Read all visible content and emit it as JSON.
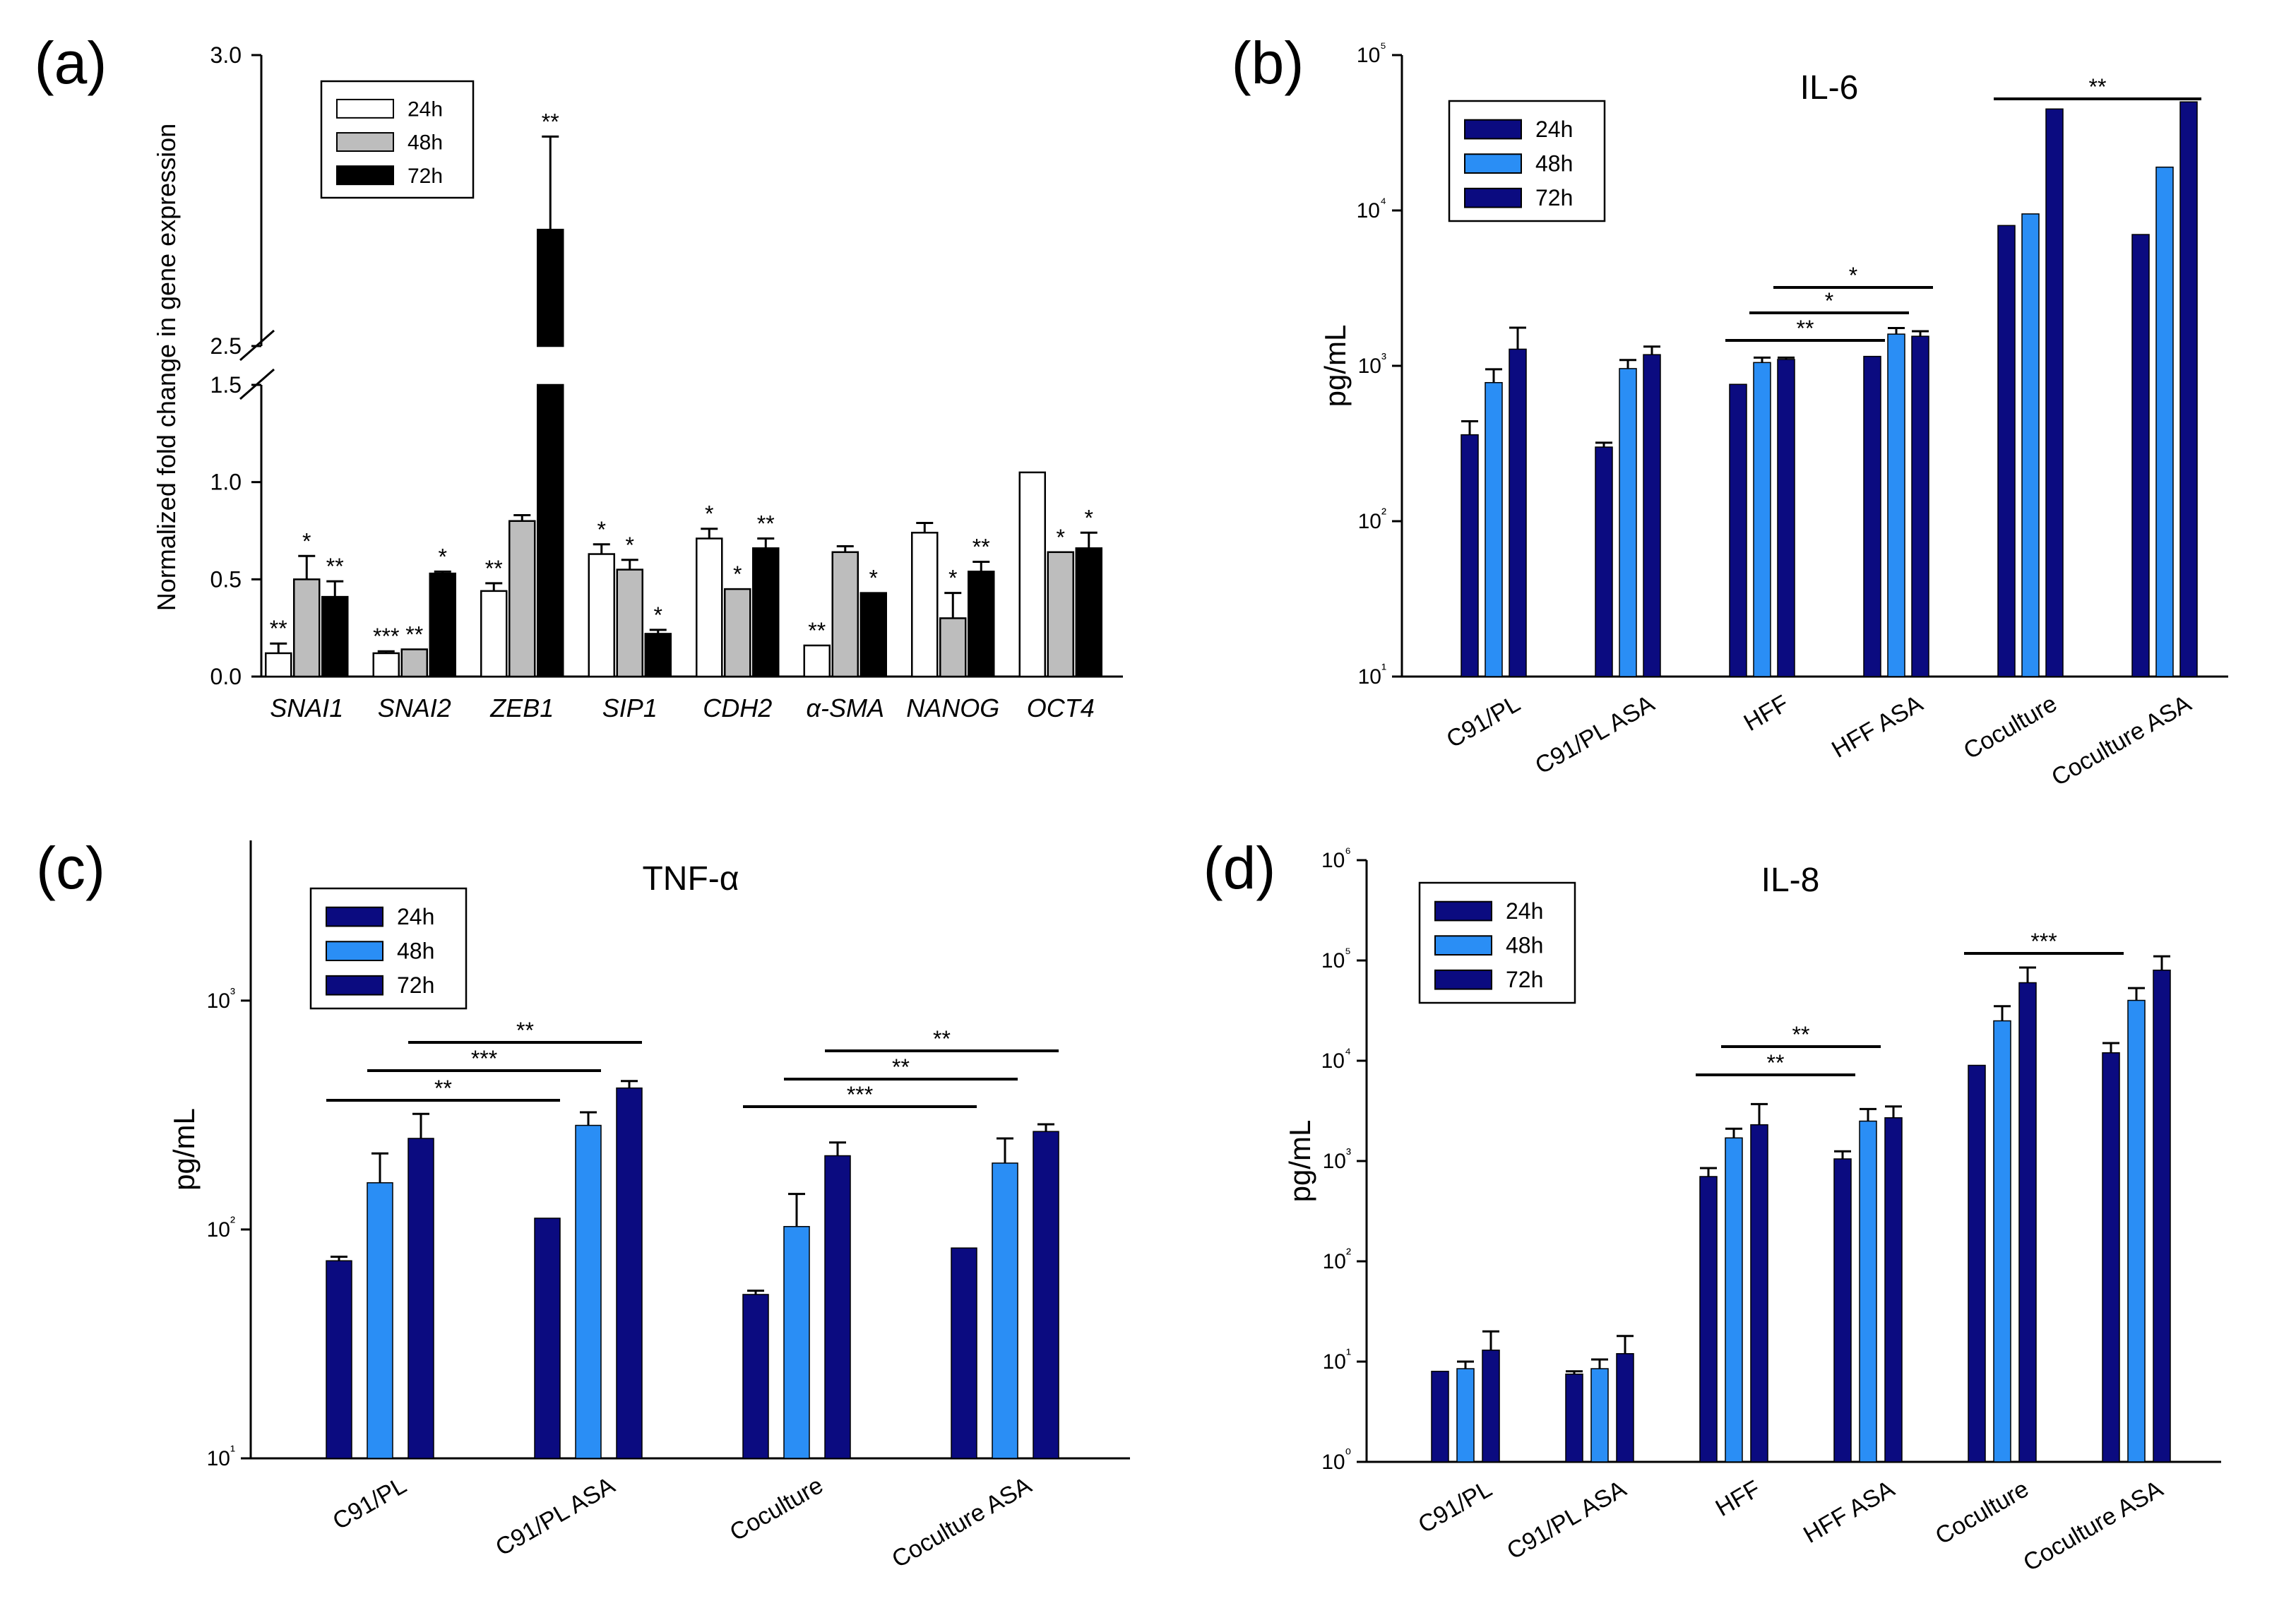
{
  "figure": {
    "colors": {
      "white24": "#ffffff",
      "gray48": "#bdbdbd",
      "black72": "#000000",
      "dark": "#0b0b80",
      "light": "#2a8ef5",
      "axis": "#000000"
    }
  },
  "chart_data": [
    {
      "panel_label": "(a)",
      "type": "bar",
      "title": "",
      "ylabel": "Normalized fold change in gene expression",
      "xlabel": "",
      "y_lower_range": [
        0,
        1.5
      ],
      "y_upper_range": [
        2.5,
        3.0
      ],
      "y_ticks": [
        "0.0",
        "0.5",
        "1.0",
        "1.5",
        "2.5",
        "3.0"
      ],
      "categories": [
        "SNAI1",
        "SNAI2",
        "ZEB1",
        "SIP1",
        "CDH2",
        "α-SMA",
        "NANOG",
        "OCT4"
      ],
      "series": [
        {
          "name": "24h",
          "values": [
            0.12,
            0.12,
            0.44,
            0.63,
            0.71,
            0.16,
            0.74,
            1.05
          ],
          "errors": [
            0.05,
            0.01,
            0.04,
            0.05,
            0.05,
            0.0,
            0.05,
            0.0
          ],
          "stars": [
            "**",
            "***",
            "**",
            "*",
            "*",
            "**",
            "",
            ""
          ]
        },
        {
          "name": "48h",
          "values": [
            0.5,
            0.14,
            0.8,
            0.55,
            0.45,
            0.64,
            0.3,
            0.64
          ],
          "errors": [
            0.12,
            0.0,
            0.03,
            0.05,
            0.0,
            0.03,
            0.13,
            0.0
          ],
          "stars": [
            "*",
            "**",
            "",
            "*",
            "*",
            "",
            "*",
            "*"
          ]
        },
        {
          "name": "72h",
          "values": [
            0.41,
            0.53,
            2.7,
            0.22,
            0.66,
            0.43,
            0.54,
            0.66
          ],
          "errors": [
            0.08,
            0.01,
            0.16,
            0.02,
            0.05,
            0.0,
            0.05,
            0.08
          ],
          "stars": [
            "**",
            "*",
            "**",
            "*",
            "**",
            "*",
            "**",
            "*"
          ]
        }
      ],
      "legend": [
        "24h",
        "48h",
        "72h"
      ]
    },
    {
      "panel_label": "(b)",
      "type": "bar",
      "title": "IL-6",
      "ylabel": "pg/mL",
      "yscale": "log",
      "ylim_exp": [
        1,
        5
      ],
      "y_ticks": [
        "10¹",
        "10²",
        "10³",
        "10⁴",
        "10⁵"
      ],
      "categories": [
        "C91/PL",
        "C91/PL ASA",
        "HFF",
        "HFF ASA",
        "Coculture",
        "Coculture ASA"
      ],
      "series": [
        {
          "name": "24h",
          "values": [
            360,
            300,
            760,
            1150,
            8000,
            7000
          ],
          "errors": [
            80,
            20,
            0,
            0,
            0,
            0
          ]
        },
        {
          "name": "48h",
          "values": [
            780,
            960,
            1050,
            1600,
            9500,
            19000
          ],
          "errors": [
            170,
            130,
            80,
            150,
            0,
            0
          ]
        },
        {
          "name": "72h",
          "values": [
            1280,
            1180,
            1100,
            1550,
            45000,
            50000
          ],
          "errors": [
            480,
            150,
            30,
            120,
            0,
            0
          ]
        }
      ],
      "significance": [
        {
          "label": "**",
          "from": [
            2,
            0
          ],
          "to": [
            3,
            0
          ]
        },
        {
          "label": "*",
          "from": [
            2,
            1
          ],
          "to": [
            3,
            1
          ]
        },
        {
          "label": "*",
          "from": [
            2,
            2
          ],
          "to": [
            3,
            2
          ]
        },
        {
          "label": "**",
          "from": [
            4,
            0
          ],
          "to": [
            5,
            2
          ]
        }
      ],
      "legend": [
        "24h",
        "48h",
        "72h"
      ]
    },
    {
      "panel_label": "(c)",
      "type": "bar",
      "title": "TNF-α",
      "ylabel": "pg/mL",
      "yscale": "log",
      "ylim_exp": [
        1,
        3.7
      ],
      "y_ticks": [
        "10¹",
        "10²",
        "10³"
      ],
      "categories": [
        "C91/PL",
        "C91/PL ASA",
        "Coculture",
        "Coculture ASA"
      ],
      "series": [
        {
          "name": "24h",
          "values": [
            73,
            112,
            52,
            83
          ],
          "errors": [
            3,
            0,
            2,
            0
          ]
        },
        {
          "name": "48h",
          "values": [
            160,
            285,
            103,
            195
          ],
          "errors": [
            55,
            40,
            40,
            55
          ]
        },
        {
          "name": "72h",
          "values": [
            250,
            415,
            210,
            268
          ],
          "errors": [
            70,
            30,
            30,
            20
          ]
        }
      ],
      "significance": [
        {
          "label": "**",
          "from": [
            0,
            0
          ],
          "to": [
            1,
            0
          ]
        },
        {
          "label": "***",
          "from": [
            0,
            1
          ],
          "to": [
            1,
            1
          ]
        },
        {
          "label": "**",
          "from": [
            0,
            2
          ],
          "to": [
            1,
            2
          ]
        },
        {
          "label": "***",
          "from": [
            2,
            0
          ],
          "to": [
            3,
            0
          ]
        },
        {
          "label": "**",
          "from": [
            2,
            1
          ],
          "to": [
            3,
            1
          ]
        },
        {
          "label": "**",
          "from": [
            2,
            2
          ],
          "to": [
            3,
            2
          ]
        }
      ],
      "legend": [
        "24h",
        "48h",
        "72h"
      ]
    },
    {
      "panel_label": "(d)",
      "type": "bar",
      "title": "IL-8",
      "ylabel": "pg/mL",
      "yscale": "log",
      "ylim_exp": [
        0,
        6
      ],
      "y_ticks": [
        "10⁰",
        "10¹",
        "10²",
        "10³",
        "10⁴",
        "10⁵",
        "10⁶"
      ],
      "categories": [
        "C91/PL",
        "C91/PL ASA",
        "HFF",
        "HFF ASA",
        "Coculture",
        "Coculture ASA"
      ],
      "series": [
        {
          "name": "24h",
          "values": [
            8,
            7.5,
            700,
            1050,
            9000,
            12000
          ],
          "errors": [
            0,
            0.5,
            150,
            200,
            0,
            3000
          ]
        },
        {
          "name": "48h",
          "values": [
            8.5,
            8.5,
            1700,
            2500,
            25000,
            40000
          ],
          "errors": [
            1.5,
            2,
            400,
            800,
            10000,
            13000
          ]
        },
        {
          "name": "72h",
          "values": [
            13,
            12,
            2300,
            2700,
            60000,
            80000
          ],
          "errors": [
            7,
            6,
            1400,
            800,
            25000,
            30000
          ]
        }
      ],
      "significance": [
        {
          "label": "**",
          "from": [
            2,
            0
          ],
          "to": [
            3,
            0
          ]
        },
        {
          "label": "**",
          "from": [
            2,
            1
          ],
          "to": [
            3,
            1
          ]
        },
        {
          "label": "***",
          "from": [
            4,
            0
          ],
          "to": [
            5,
            0
          ]
        }
      ],
      "legend": [
        "24h",
        "48h",
        "72h"
      ]
    }
  ]
}
